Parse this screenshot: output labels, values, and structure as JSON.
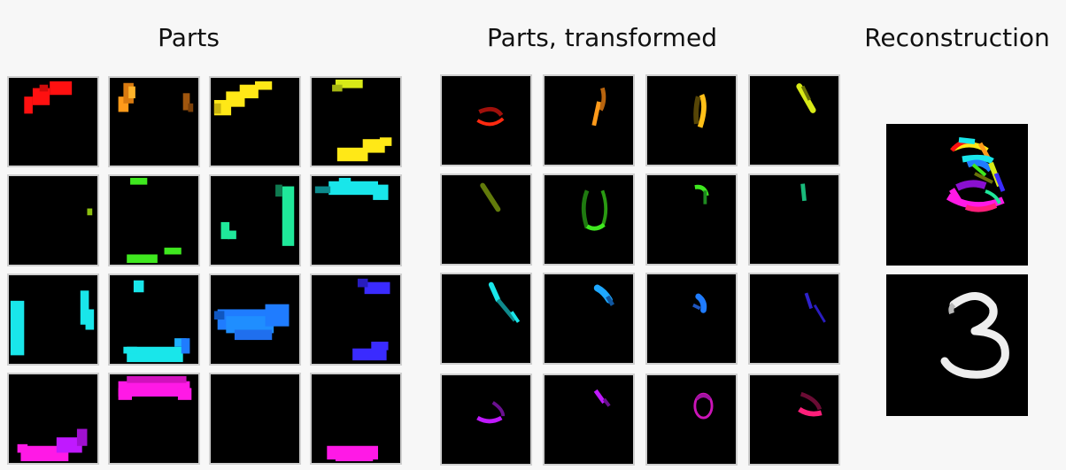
{
  "titles": {
    "parts": "Parts",
    "transformed": "Parts, transformed",
    "reconstruction": "Reconstruction"
  },
  "parts": [
    "part-red",
    "part-orange",
    "part-yellow",
    "part-yellow-lime",
    "part-olive",
    "part-green",
    "part-green-teal",
    "part-cyan",
    "part-cyan-light",
    "part-cyan-bottom",
    "part-blue",
    "part-indigo",
    "part-magenta-purple",
    "part-magenta",
    "part-empty",
    "part-pink-magenta"
  ],
  "colors": {
    "red": "#ff1010",
    "orange": "#ff9a1a",
    "yellow": "#ffe817",
    "lime": "#d8ea17",
    "olive": "#8cbf10",
    "green": "#3fe81f",
    "teal": "#1fe89a",
    "cyan": "#19e6ea",
    "blue": "#1f7cff",
    "indigo": "#3a2bff",
    "purple": "#c019ff",
    "magenta": "#ff19e6",
    "pink": "#ff1f7a",
    "digit": "#eeeeee"
  }
}
